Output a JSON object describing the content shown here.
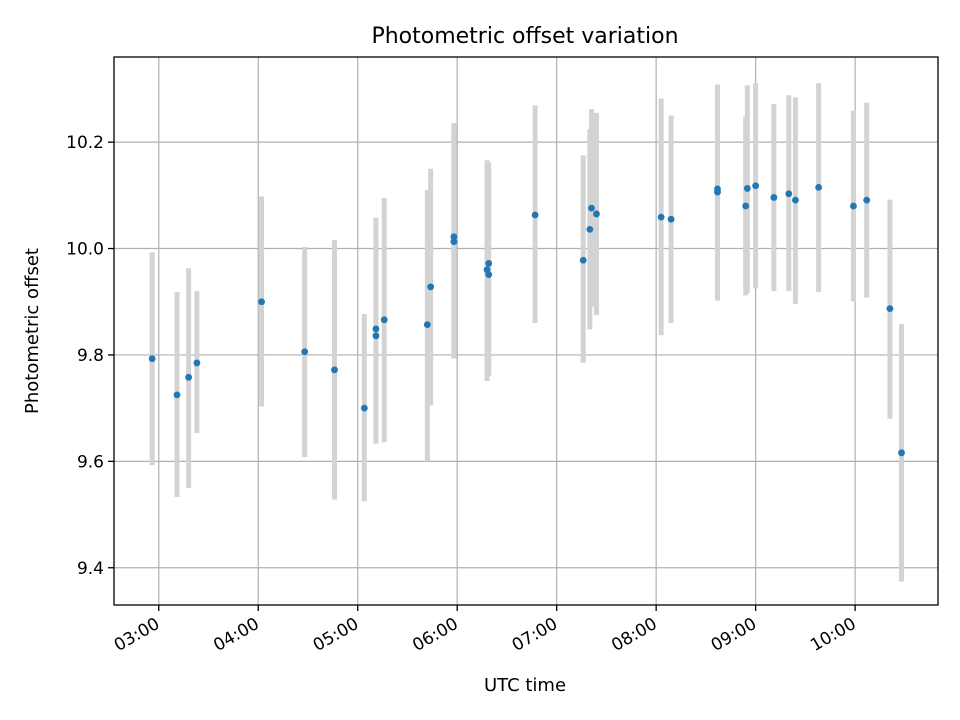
{
  "chart_data": {
    "type": "scatter",
    "title": "Photometric offset variation",
    "xlabel": "UTC time",
    "ylabel": "Photometric offset",
    "x_ticks": [
      "03:00",
      "04:00",
      "05:00",
      "06:00",
      "07:00",
      "08:00",
      "09:00",
      "10:00"
    ],
    "y_ticks": [
      "9.4",
      "9.6",
      "9.8",
      "10.0",
      "10.2"
    ],
    "xlim": [
      "02:33",
      "10:50"
    ],
    "ylim": [
      9.33,
      10.36
    ],
    "grid": true,
    "colors": {
      "points": "#1f77b4",
      "errorbars": "#d3d3d3"
    },
    "series": [
      {
        "points": [
          {
            "x": "02:56",
            "y": 9.793,
            "low": 9.593,
            "high": 9.993
          },
          {
            "x": "03:11",
            "y": 9.725,
            "low": 9.533,
            "high": 9.918
          },
          {
            "x": "03:18",
            "y": 9.758,
            "low": 9.55,
            "high": 9.963
          },
          {
            "x": "03:23",
            "y": 9.785,
            "low": 9.653,
            "high": 9.92
          },
          {
            "x": "04:02",
            "y": 9.9,
            "low": 9.703,
            "high": 10.098
          },
          {
            "x": "04:28",
            "y": 9.806,
            "low": 9.608,
            "high": 10.003
          },
          {
            "x": "04:46",
            "y": 9.772,
            "low": 9.528,
            "high": 10.016
          },
          {
            "x": "05:04",
            "y": 9.7,
            "low": 9.525,
            "high": 9.877
          },
          {
            "x": "05:11",
            "y": 9.836,
            "low": 9.633,
            "high": 10.058
          },
          {
            "x": "05:11",
            "y": 9.849,
            "low": 9.64,
            "high": 10.04
          },
          {
            "x": "05:16",
            "y": 9.866,
            "low": 9.636,
            "high": 10.095
          },
          {
            "x": "05:42",
            "y": 9.857,
            "low": 9.6,
            "high": 10.11
          },
          {
            "x": "05:44",
            "y": 9.928,
            "low": 9.705,
            "high": 10.15
          },
          {
            "x": "05:58",
            "y": 10.013,
            "low": 9.793,
            "high": 10.236
          },
          {
            "x": "05:58",
            "y": 10.022,
            "low": 9.81,
            "high": 10.22
          },
          {
            "x": "06:18",
            "y": 9.96,
            "low": 9.751,
            "high": 10.166
          },
          {
            "x": "06:19",
            "y": 9.951,
            "low": 9.76,
            "high": 10.15
          },
          {
            "x": "06:19",
            "y": 9.972,
            "low": 9.783,
            "high": 10.162
          },
          {
            "x": "06:47",
            "y": 10.063,
            "low": 9.86,
            "high": 10.269
          },
          {
            "x": "07:16",
            "y": 9.978,
            "low": 9.785,
            "high": 10.175
          },
          {
            "x": "07:20",
            "y": 10.036,
            "low": 9.848,
            "high": 10.224
          },
          {
            "x": "07:21",
            "y": 10.076,
            "low": 9.89,
            "high": 10.262
          },
          {
            "x": "07:24",
            "y": 10.065,
            "low": 9.875,
            "high": 10.255
          },
          {
            "x": "08:03",
            "y": 10.059,
            "low": 9.837,
            "high": 10.282
          },
          {
            "x": "08:09",
            "y": 10.055,
            "low": 9.86,
            "high": 10.25
          },
          {
            "x": "08:37",
            "y": 10.106,
            "low": 9.902,
            "high": 10.308
          },
          {
            "x": "08:37",
            "y": 10.112,
            "low": 9.921,
            "high": 10.303
          },
          {
            "x": "08:54",
            "y": 10.08,
            "low": 9.912,
            "high": 10.248
          },
          {
            "x": "08:55",
            "y": 10.113,
            "low": 9.916,
            "high": 10.307
          },
          {
            "x": "09:00",
            "y": 10.118,
            "low": 9.925,
            "high": 10.311
          },
          {
            "x": "09:11",
            "y": 10.096,
            "low": 9.92,
            "high": 10.272
          },
          {
            "x": "09:20",
            "y": 10.103,
            "low": 9.92,
            "high": 10.288
          },
          {
            "x": "09:24",
            "y": 10.091,
            "low": 9.896,
            "high": 10.284
          },
          {
            "x": "09:38",
            "y": 10.115,
            "low": 9.918,
            "high": 10.311
          },
          {
            "x": "09:59",
            "y": 10.08,
            "low": 9.901,
            "high": 10.259
          },
          {
            "x": "10:07",
            "y": 10.091,
            "low": 9.908,
            "high": 10.274
          },
          {
            "x": "10:21",
            "y": 9.887,
            "low": 9.68,
            "high": 10.092
          },
          {
            "x": "10:28",
            "y": 9.616,
            "low": 9.374,
            "high": 9.858
          }
        ]
      }
    ]
  }
}
